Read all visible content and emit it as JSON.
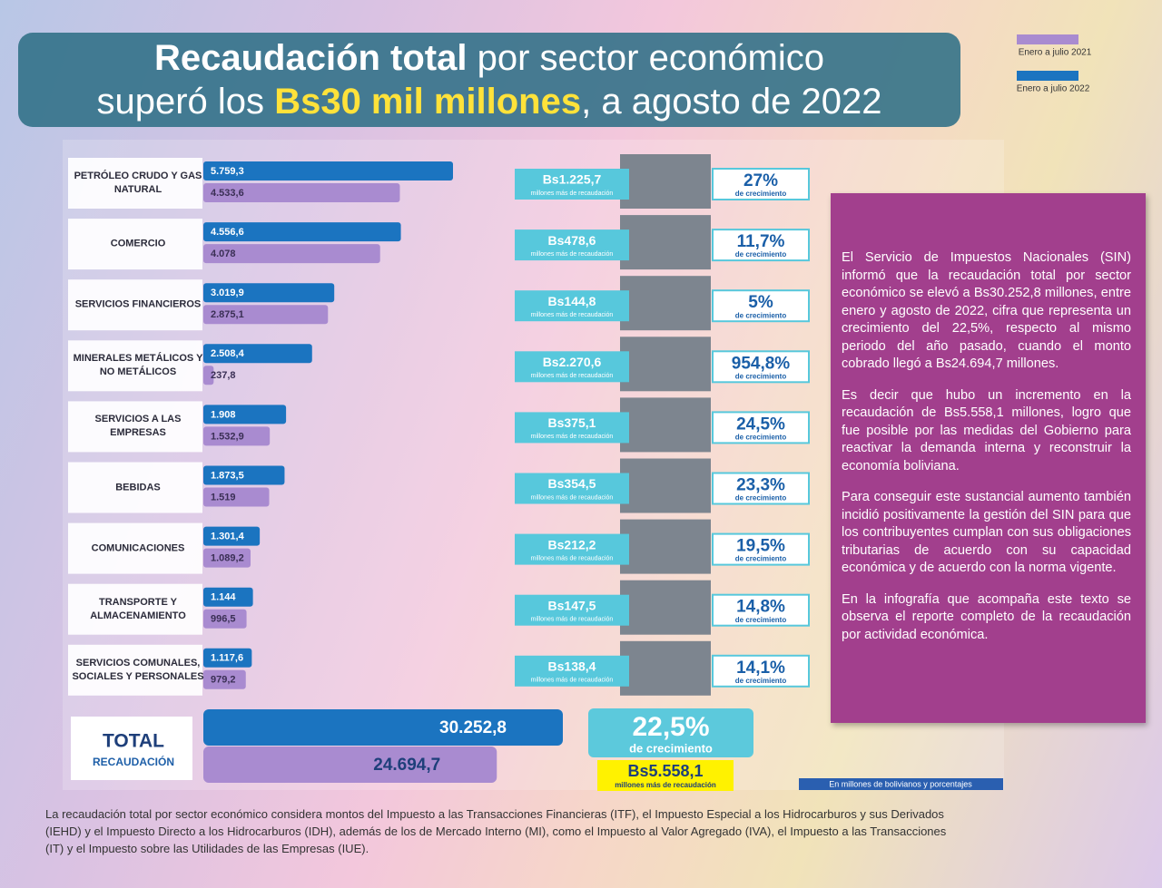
{
  "header": {
    "title_bold": "Recaudación total",
    "title_rest": "por sector económico",
    "line2_start": "superó los",
    "highlight": "Bs30 mil millones",
    "line2_end": ", a agosto de 2022"
  },
  "chart_data": {
    "type": "bar",
    "orientation": "horizontal",
    "categories": [
      "PETRÓLEO CRUDO Y GAS NATURAL",
      "COMERCIO",
      "SERVICIOS FINANCIEROS",
      "MINERALES METÁLICOS Y NO METÁLICOS",
      "SERVICIOS A LAS EMPRESAS",
      "BEBIDAS",
      "COMUNICACIONES",
      "TRANSPORTE Y ALMACENAMIENTO",
      "SERVICIOS COMUNALES, SOCIALES Y PERSONALES"
    ],
    "series": [
      {
        "name": "Enero a julio 2022",
        "color": "#1b74c0",
        "values": [
          5759.3,
          4556.6,
          3019.9,
          2508.4,
          1908,
          1873.5,
          1301.4,
          1144,
          1117.6
        ],
        "value_labels": [
          "5.759,3",
          "4.556,6",
          "3.019,9",
          "2.508,4",
          "1.908",
          "1.873,5",
          "1.301,4",
          "1.144",
          "1.117,6"
        ]
      },
      {
        "name": "Enero a julio 2021",
        "color": "#a98bd0",
        "values": [
          4533.6,
          4078,
          2875.1,
          237.8,
          1532.9,
          1519,
          1089.2,
          996.5,
          979.2
        ],
        "value_labels": [
          "4.533,6",
          "4.078",
          "2.875,1",
          "237,8",
          "1.532,9",
          "1.519",
          "1.089,2",
          "996,5",
          "979,2"
        ]
      }
    ],
    "units_note": "En millones de bolivianos y porcentajes"
  },
  "rows": [
    {
      "difference": "Bs1.225,7",
      "growth": "27%"
    },
    {
      "difference": "Bs478,6",
      "growth": "11,7%"
    },
    {
      "difference": "Bs144,8",
      "growth": "5%"
    },
    {
      "difference": "Bs2.270,6",
      "growth": "954,8%"
    },
    {
      "difference": "Bs375,1",
      "growth": "24,5%"
    },
    {
      "difference": "Bs354,5",
      "growth": "23,3%"
    },
    {
      "difference": "Bs212,2",
      "growth": "19,5%"
    },
    {
      "difference": "Bs147,5",
      "growth": "14,8%"
    },
    {
      "difference": "Bs138,4",
      "growth": "14,1%"
    }
  ],
  "difference_caption": "millones más de recaudación",
  "growth_caption": "de crecimiento",
  "total": {
    "label": "TOTAL",
    "sublabel": "RECAUDACIÓN",
    "values": [
      30252.8,
      24694.7
    ],
    "value_labels": [
      "30.252,8",
      "24.694,7"
    ],
    "growth": "22,5%",
    "growth_caption": "de crecimiento",
    "difference": "Bs5.558,1",
    "difference_caption": "millones más de recaudación"
  },
  "side_text": [
    "El Servicio de Impuestos Nacionales (SIN) informó que la recaudación total por sector económico se elevó a Bs30.252,8 millones, entre enero y agosto de 2022, cifra que representa un crecimiento del 22,5%, respecto al mismo periodo del año pasado, cuando el monto cobrado llegó a Bs24.694,7 millones.",
    "Es decir que hubo un incremento en la recaudación de Bs5.558,1 millones, logro que fue posible por las medidas del Gobierno para reactivar la demanda interna y reconstruir la economía boliviana.",
    "Para conseguir este sustancial aumento también incidió positivamente la gestión del SIN para que los contribuyentes cumplan con sus obligaciones tributarias de acuerdo con su capacidad económica y de acuerdo con la norma vigente.",
    "En la infografía que acompaña este texto se observa el reporte completo de la recaudación por actividad económica."
  ],
  "footnote": "La recaudación total por sector económico considera montos del Impuesto a las Transacciones Financieras (ITF), el Impuesto Especial a los Hidrocarburos y sus Derivados (IEHD) y el Impuesto Directo a los Hidrocarburos (IDH), además de los de Mercado Interno (MI), como el Impuesto al Valor Agregado (IVA), el Impuesto a las Transacciones (IT) y el Impuesto sobre las Utilidades de las Empresas (IUE)."
}
